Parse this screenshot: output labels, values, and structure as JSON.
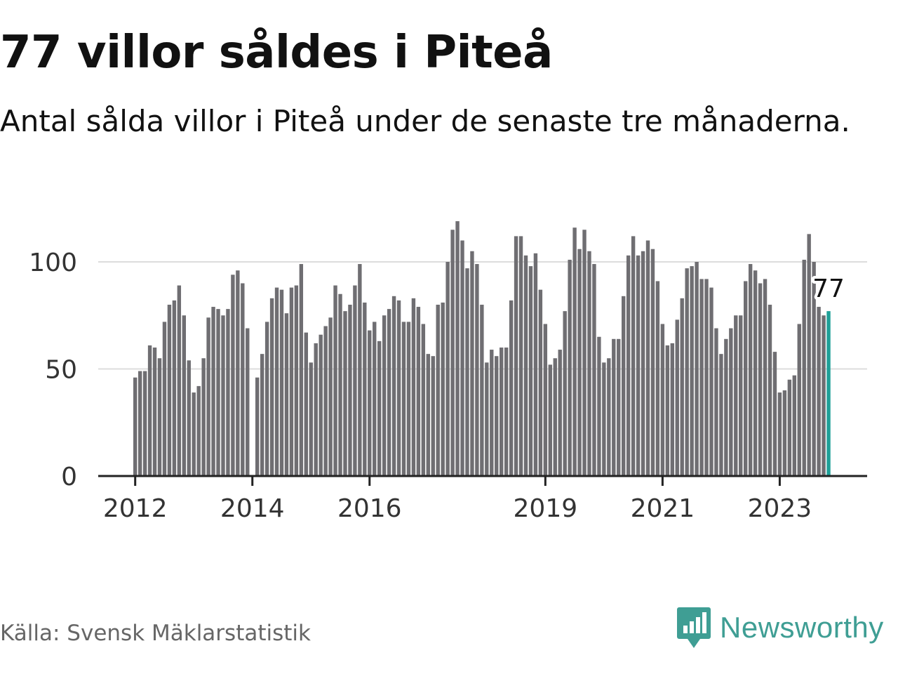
{
  "title": "77 villor såldes i Piteå",
  "subtitle": "Antal sålda villor i Piteå under de senaste tre månaderna.",
  "source": "Källa: Svensk Mäklarstatistik",
  "brand": {
    "name": "Newsworthy",
    "icon": "newsworthy-logo-icon",
    "color": "#3f9e94"
  },
  "colors": {
    "bar": "#6f6e72",
    "highlight": "#1ea098",
    "grid": "#dddddd",
    "axis": "#222222"
  },
  "chart_data": {
    "type": "bar",
    "title": "77 villor såldes i Piteå",
    "xlabel": "",
    "ylabel": "",
    "ylim": [
      0,
      120
    ],
    "yticks": [
      0,
      50,
      100
    ],
    "grid": true,
    "x_tick_labels": [
      {
        "label": "2012",
        "index": 0
      },
      {
        "label": "2014",
        "index": 24
      },
      {
        "label": "2016",
        "index": 48
      },
      {
        "label": "2019",
        "index": 84
      },
      {
        "label": "2021",
        "index": 108
      },
      {
        "label": "2023",
        "index": 132
      }
    ],
    "start": "2012-01",
    "values": [
      46,
      49,
      49,
      61,
      60,
      55,
      72,
      80,
      82,
      89,
      75,
      54,
      39,
      42,
      55,
      74,
      79,
      78,
      75,
      78,
      94,
      96,
      90,
      69,
      0,
      46,
      57,
      72,
      83,
      88,
      87,
      76,
      88,
      89,
      99,
      67,
      53,
      62,
      66,
      70,
      74,
      89,
      85,
      77,
      80,
      89,
      99,
      81,
      68,
      72,
      63,
      75,
      78,
      84,
      82,
      72,
      72,
      83,
      79,
      71,
      57,
      56,
      80,
      81,
      100,
      115,
      119,
      110,
      97,
      105,
      99,
      80,
      53,
      59,
      56,
      60,
      60,
      82,
      112,
      112,
      103,
      98,
      104,
      87,
      71,
      52,
      55,
      59,
      77,
      101,
      116,
      106,
      115,
      105,
      99,
      65,
      53,
      55,
      64,
      64,
      84,
      103,
      112,
      103,
      105,
      110,
      106,
      91,
      71,
      61,
      62,
      73,
      83,
      97,
      98,
      100,
      92,
      92,
      88,
      69,
      57,
      64,
      69,
      75,
      75,
      91,
      99,
      96,
      90,
      92,
      80,
      58,
      39,
      40,
      45,
      47,
      71,
      101,
      113,
      100,
      79,
      75,
      77
    ],
    "highlight_index": 142,
    "highlight_label": "77"
  }
}
